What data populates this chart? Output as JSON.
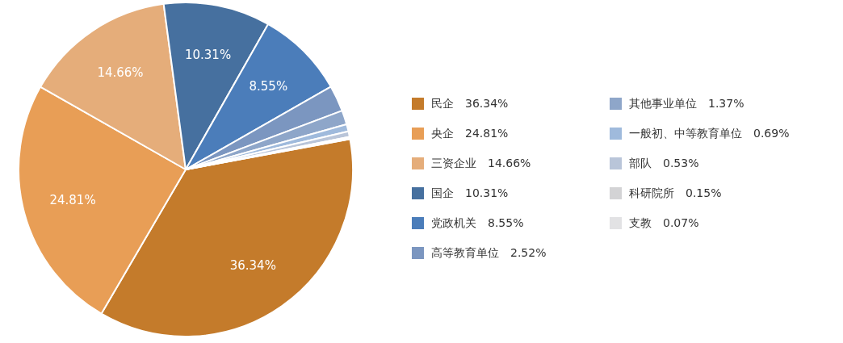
{
  "chart_data": {
    "type": "pie",
    "categories": [
      "民企",
      "央企",
      "三资企业",
      "国企",
      "党政机关",
      "高等教育单位",
      "其他事业单位",
      "一般初、中等教育单位",
      "部队",
      "科研院所",
      "支教"
    ],
    "values": [
      36.34,
      24.81,
      14.66,
      10.31,
      8.55,
      2.52,
      1.37,
      0.69,
      0.53,
      0.15,
      0.07
    ],
    "value_labels": [
      "36.34%",
      "24.81%",
      "14.66%",
      "10.31%",
      "8.55%",
      "2.52%",
      "1.37%",
      "0.69%",
      "0.53%",
      "0.15%",
      "0.07%"
    ],
    "colors": [
      "#c47b2b",
      "#e89e56",
      "#e5ad7a",
      "#46709f",
      "#4b7dba",
      "#7b96c0",
      "#8ea6c9",
      "#9fbadc",
      "#b9c5d9",
      "#d3d3d5",
      "#e2e2e4"
    ],
    "legend": "right"
  }
}
